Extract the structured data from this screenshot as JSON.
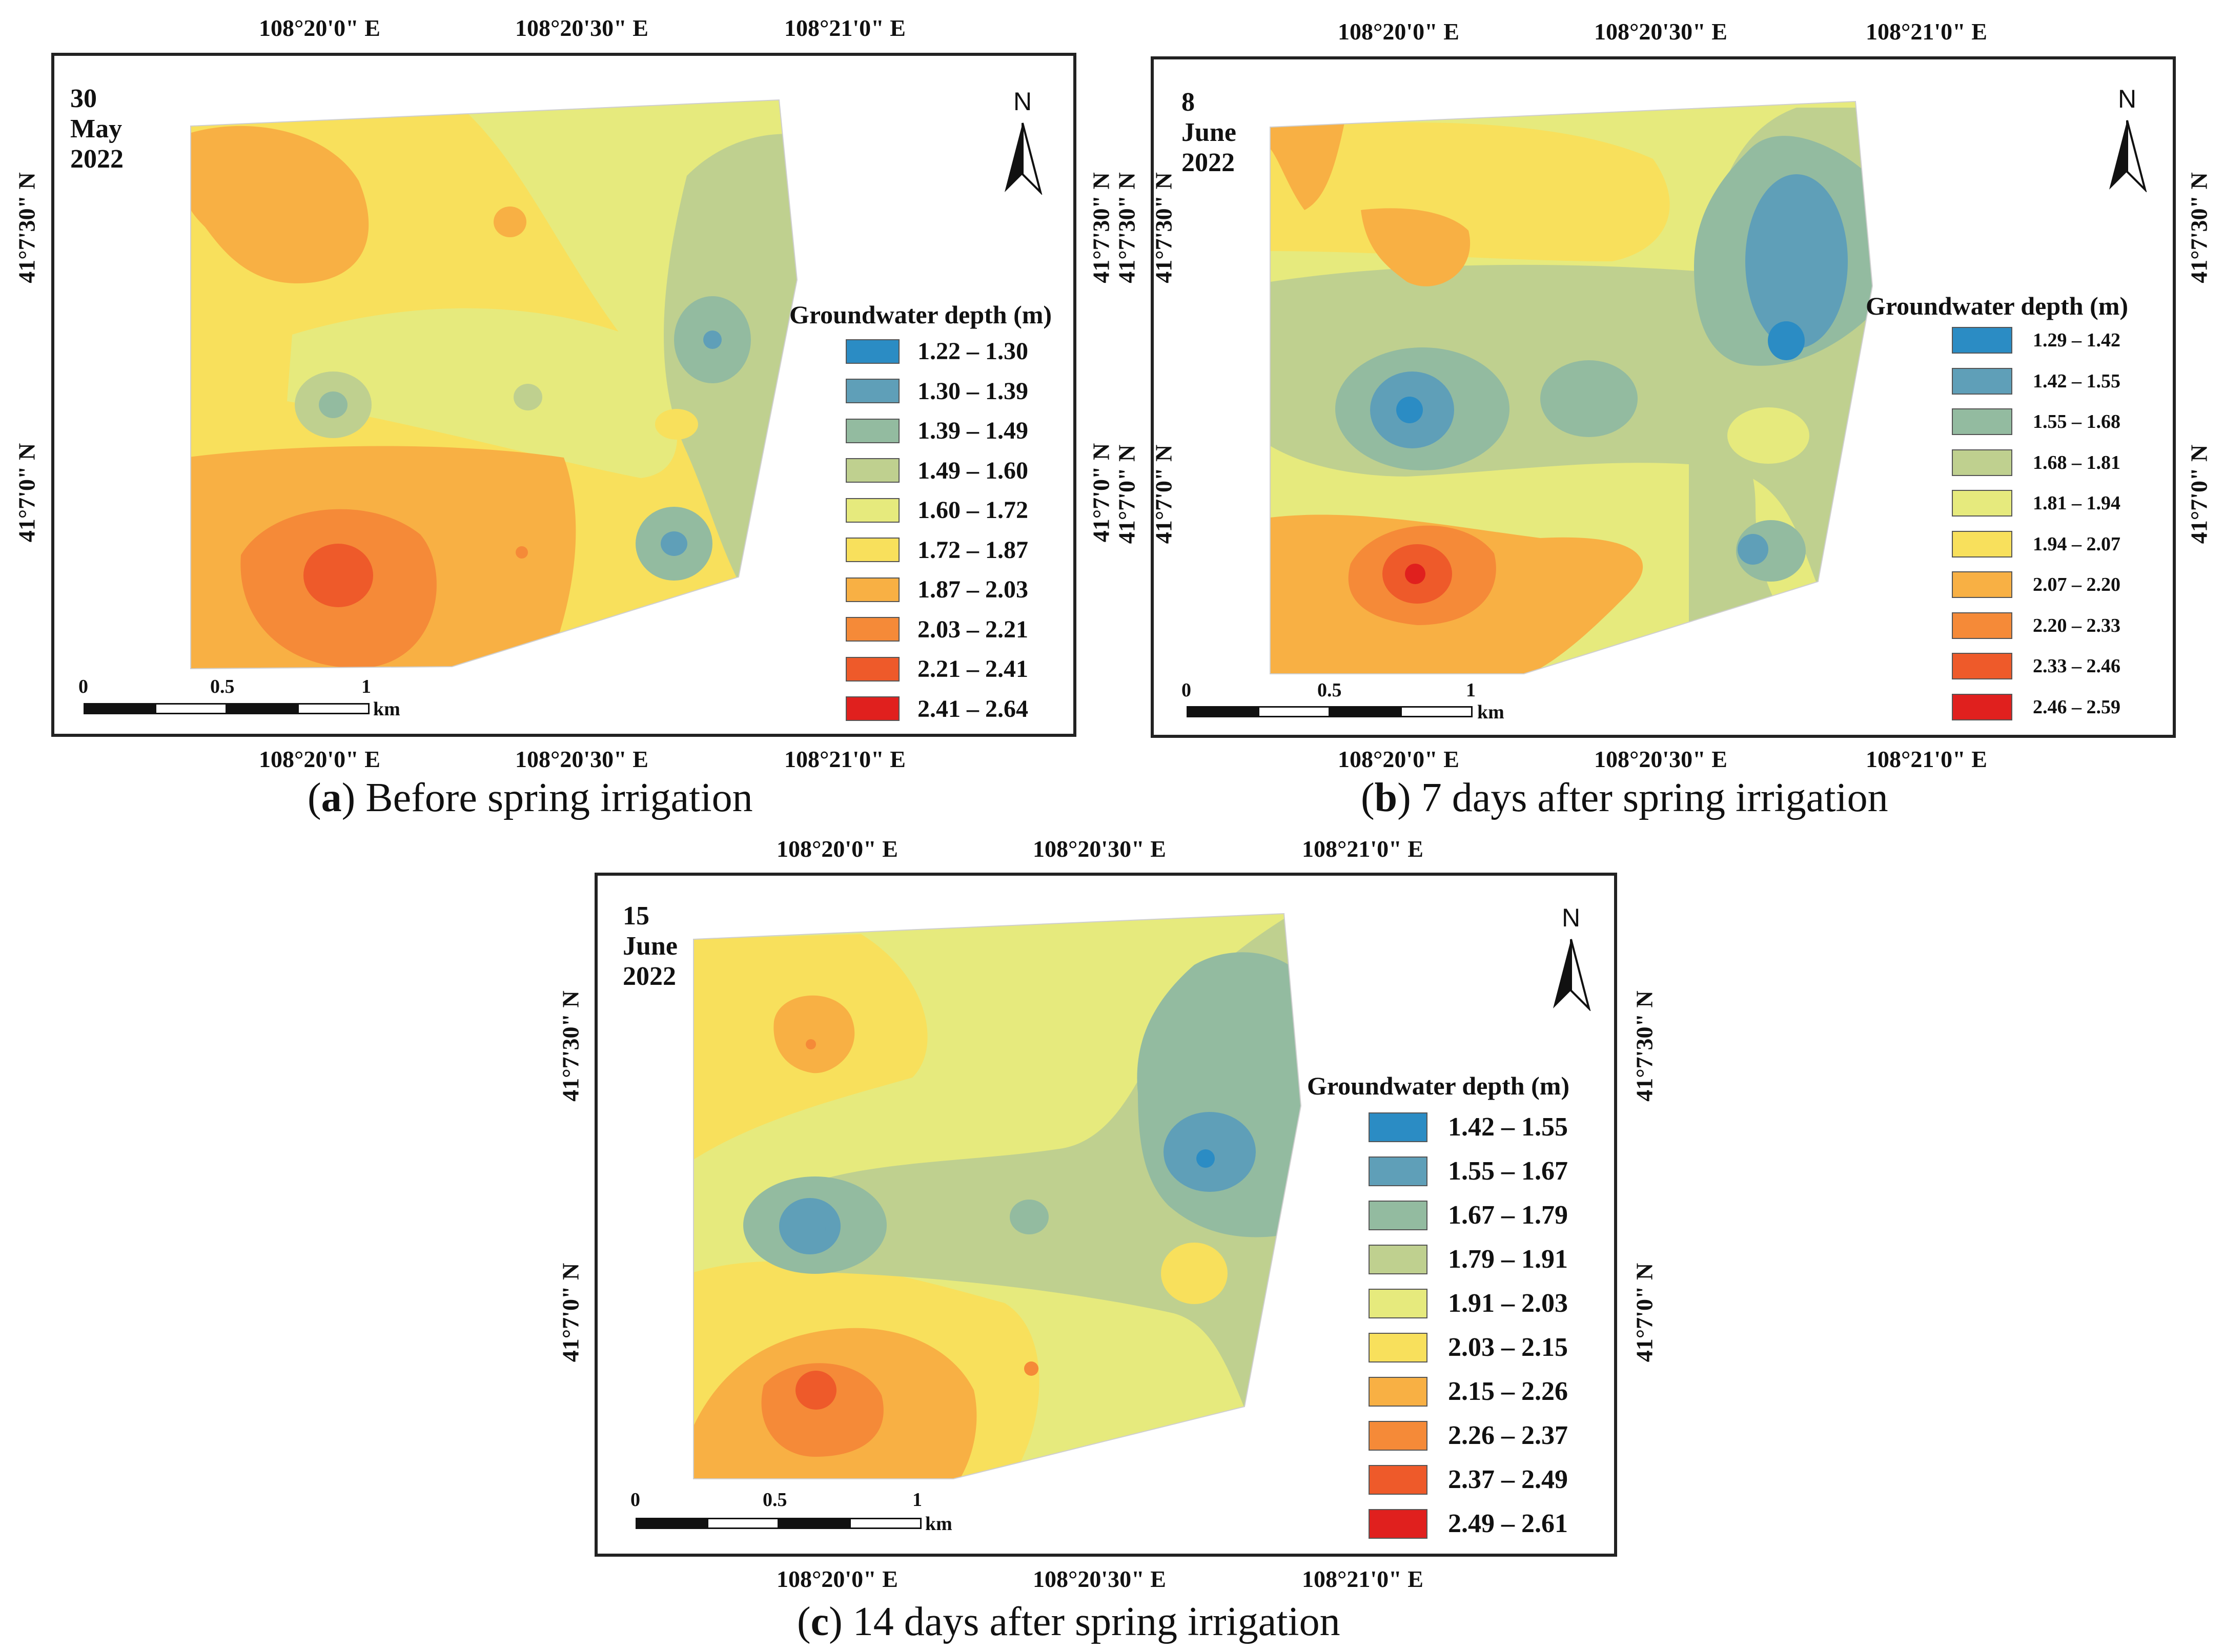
{
  "legend_title": "Groundwater depth (m)",
  "unit_km": "km",
  "north": "N",
  "scale_ticks": [
    "0",
    "0.5",
    "1"
  ],
  "panels": [
    {
      "date": "30 May 2022",
      "caption_letter": "a",
      "caption_text": ") Before spring irrigation",
      "lon_top": [
        "108°20'0\" E",
        "108°20'30\" E",
        "108°21'0\" E"
      ],
      "lon_bottom": [
        "108°20'0\" E",
        "108°20'30\" E",
        "108°21'0\" E"
      ],
      "lat_left": [
        "41°7'30\" N",
        "41°7'0\" N"
      ],
      "lat_right": [
        "41°7'30\" N",
        "41°7'0\" N"
      ],
      "legend": [
        {
          "range": "1.22 – 1.30",
          "color": "#2b8cc4"
        },
        {
          "range": "1.30 – 1.39",
          "color": "#5f9fb8"
        },
        {
          "range": "1.39 – 1.49",
          "color": "#93bba0"
        },
        {
          "range": "1.49 – 1.60",
          "color": "#bfd08f"
        },
        {
          "range": "1.60 – 1.72",
          "color": "#e6ea7d"
        },
        {
          "range": "1.72 – 1.87",
          "color": "#f8e05c"
        },
        {
          "range": "1.87 – 2.03",
          "color": "#f8b044"
        },
        {
          "range": "2.03 – 2.21",
          "color": "#f58a38"
        },
        {
          "range": "2.21 – 2.41",
          "color": "#ee5a2a"
        },
        {
          "range": "2.41 – 2.64",
          "color": "#e0201e"
        }
      ]
    },
    {
      "date": "8 June 2022",
      "caption_letter": "b",
      "caption_text": ") 7 days after spring irrigation",
      "lon_top": [
        "108°20'0\" E",
        "108°20'30\" E",
        "108°21'0\" E"
      ],
      "lon_bottom": [
        "108°20'0\" E",
        "108°20'30\" E",
        "108°21'0\" E"
      ],
      "lat_left": [
        "41°7'30\" N",
        "41°7'0\" N"
      ],
      "lat_right": [
        "41°7'30\" N",
        "41°7'0\" N"
      ],
      "legend": [
        {
          "range": "1.29 – 1.42",
          "color": "#2b8cc4"
        },
        {
          "range": "1.42 – 1.55",
          "color": "#5f9fb8"
        },
        {
          "range": "1.55 – 1.68",
          "color": "#93bba0"
        },
        {
          "range": "1.68 – 1.81",
          "color": "#bfd08f"
        },
        {
          "range": "1.81 – 1.94",
          "color": "#e6ea7d"
        },
        {
          "range": "1.94 – 2.07",
          "color": "#f8e05c"
        },
        {
          "range": "2.07 – 2.20",
          "color": "#f8b044"
        },
        {
          "range": "2.20 – 2.33",
          "color": "#f58a38"
        },
        {
          "range": "2.33 – 2.46",
          "color": "#ee5a2a"
        },
        {
          "range": "2.46 – 2.59",
          "color": "#e0201e"
        }
      ]
    },
    {
      "date": "15 June 2022",
      "caption_letter": "c",
      "caption_text": ") 14 days after spring irrigation",
      "lon_top": [
        "108°20'0\" E",
        "108°20'30\" E",
        "108°21'0\" E"
      ],
      "lon_bottom": [
        "108°20'0\" E",
        "108°20'30\" E",
        "108°21'0\" E"
      ],
      "lat_left": [
        "41°7'30\" N",
        "41°7'0\" N"
      ],
      "lat_right": [
        "41°7'30\" N",
        "41°7'0\" N"
      ],
      "legend": [
        {
          "range": "1.42 – 1.55",
          "color": "#2b8cc4"
        },
        {
          "range": "1.55 – 1.67",
          "color": "#5f9fb8"
        },
        {
          "range": "1.67 – 1.79",
          "color": "#93bba0"
        },
        {
          "range": "1.79 – 1.91",
          "color": "#bfd08f"
        },
        {
          "range": "1.91 – 2.03",
          "color": "#e6ea7d"
        },
        {
          "range": "2.03 – 2.15",
          "color": "#f8e05c"
        },
        {
          "range": "2.15 – 2.26",
          "color": "#f8b044"
        },
        {
          "range": "2.26 – 2.37",
          "color": "#f58a38"
        },
        {
          "range": "2.37 – 2.49",
          "color": "#ee5a2a"
        },
        {
          "range": "2.49 – 2.61",
          "color": "#e0201e"
        }
      ]
    }
  ]
}
